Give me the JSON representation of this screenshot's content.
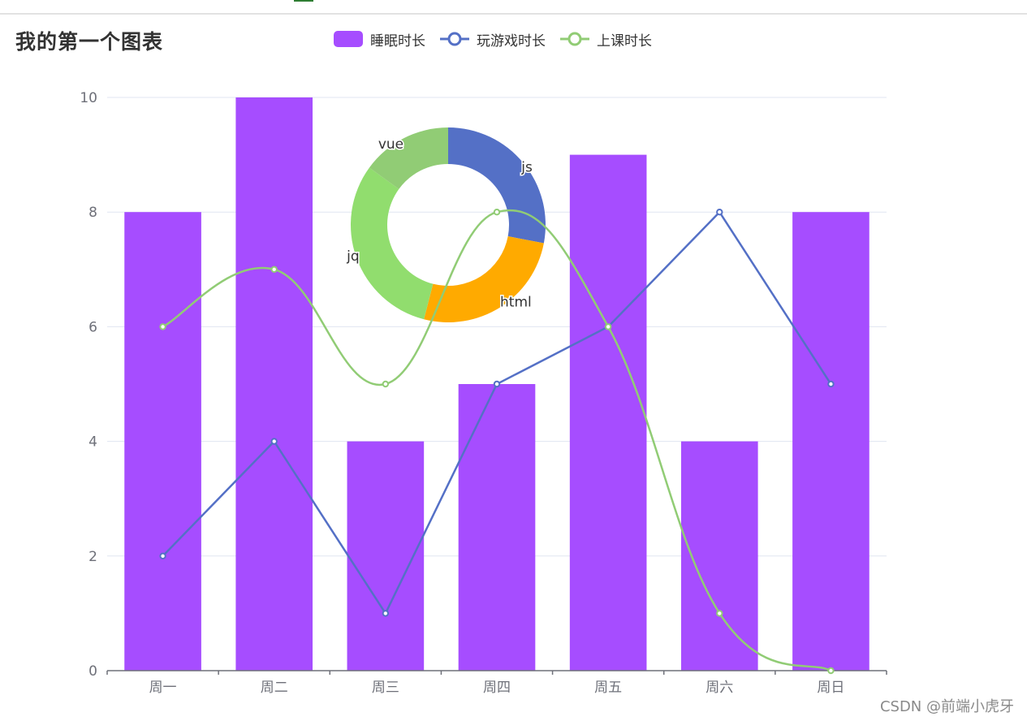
{
  "title": "我的第一个图表",
  "watermark": "CSDN @前端小虎牙",
  "legend": [
    {
      "name": "睡眠时长",
      "kind": "bar",
      "color": "#a64dff"
    },
    {
      "name": "玩游戏时长",
      "kind": "line",
      "color": "#5470c6"
    },
    {
      "name": "上课时长",
      "kind": "line",
      "color": "#91cc75"
    }
  ],
  "chart_data": [
    {
      "type": "bar",
      "categories": [
        "周一",
        "周二",
        "周三",
        "周四",
        "周五",
        "周六",
        "周日"
      ],
      "ylim": [
        0,
        10
      ],
      "yticks": [
        0,
        2,
        4,
        6,
        8,
        10
      ],
      "grid": true,
      "legend_position": "top",
      "series": [
        {
          "name": "睡眠时长",
          "type": "bar",
          "color": "#a64dff",
          "values": [
            8,
            10,
            4,
            5,
            9,
            4,
            8
          ]
        },
        {
          "name": "玩游戏时长",
          "type": "line",
          "smooth": false,
          "color": "#5470c6",
          "values": [
            2,
            4,
            1,
            5,
            6,
            8,
            5
          ]
        },
        {
          "name": "上课时长",
          "type": "line",
          "smooth": true,
          "color": "#91cc75",
          "values": [
            6,
            7,
            5,
            8,
            6,
            1,
            0
          ]
        }
      ]
    },
    {
      "type": "pie",
      "donut": true,
      "slices": [
        {
          "name": "js",
          "value": 28,
          "color": "#5470c6"
        },
        {
          "name": "html",
          "value": 26,
          "color": "#ffaa00"
        },
        {
          "name": "jq",
          "value": 31,
          "color": "#91dd6e"
        },
        {
          "name": "vue",
          "value": 15,
          "color": "#91cc75"
        }
      ]
    }
  ]
}
